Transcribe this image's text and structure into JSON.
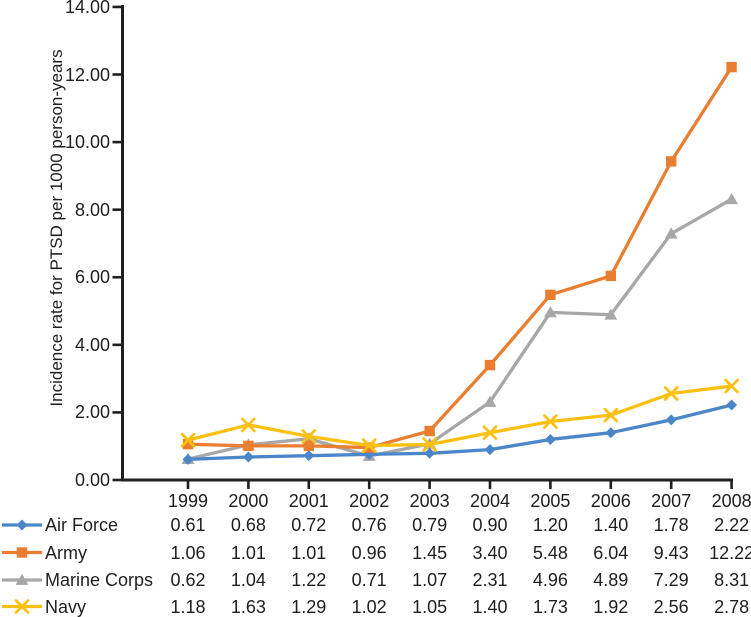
{
  "figure": {
    "background": "#ffffff",
    "text_color": "#1f1f1f",
    "axis_color": "#1f1f1f"
  },
  "chart_data": {
    "type": "line",
    "title": "",
    "xlabel": "",
    "ylabel": "Incidence rate for PTSD per 1000 person-years",
    "x": [
      "1999",
      "2000",
      "2001",
      "2002",
      "2003",
      "2004",
      "2005",
      "2006",
      "2007",
      "2008"
    ],
    "ylim": [
      0,
      14
    ],
    "ytick_step": 2,
    "ytick_labels": [
      "0.00",
      "2.00",
      "4.00",
      "6.00",
      "8.00",
      "10.00",
      "12.00",
      "14.00"
    ],
    "grid": false,
    "legend_position": "bottom-left",
    "table_value_decimals": 2,
    "series": [
      {
        "name": "Air Force",
        "marker": "diamond",
        "color": "#4A86C8",
        "values": [
          0.61,
          0.68,
          0.72,
          0.76,
          0.79,
          0.9,
          1.2,
          1.4,
          1.78,
          2.22
        ]
      },
      {
        "name": "Army",
        "marker": "square",
        "color": "#E97E30",
        "values": [
          1.06,
          1.01,
          1.01,
          0.96,
          1.45,
          3.4,
          5.48,
          6.04,
          9.43,
          12.22
        ]
      },
      {
        "name": "Marine Corps",
        "marker": "triangle",
        "color": "#A7A7A7",
        "values": [
          0.62,
          1.04,
          1.22,
          0.71,
          1.07,
          2.31,
          4.96,
          4.89,
          7.29,
          8.31
        ]
      },
      {
        "name": "Navy",
        "marker": "x",
        "color": "#FDC010",
        "values": [
          1.18,
          1.63,
          1.29,
          1.02,
          1.05,
          1.4,
          1.73,
          1.92,
          2.56,
          2.78
        ]
      }
    ]
  }
}
